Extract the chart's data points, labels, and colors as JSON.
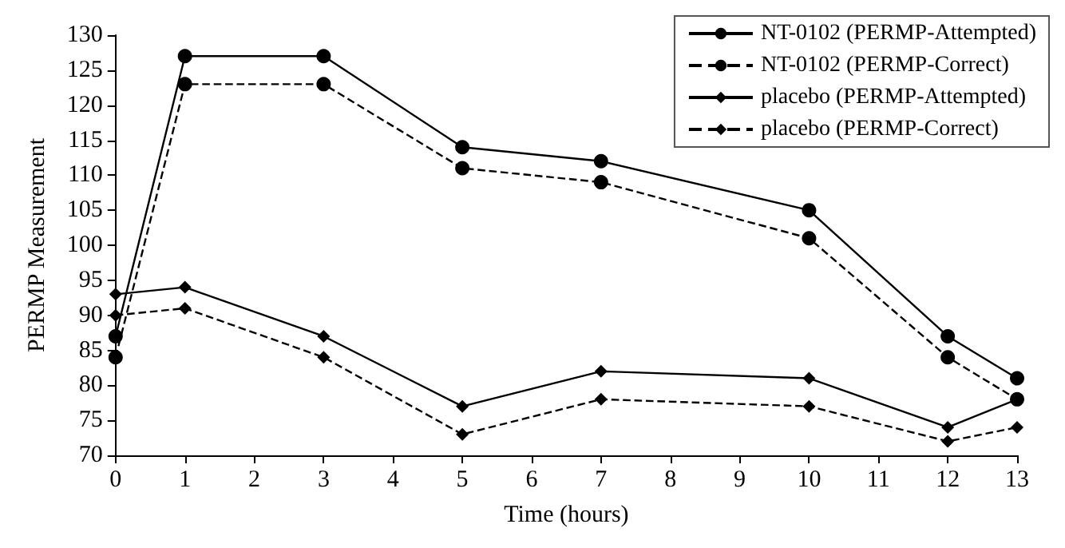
{
  "chart_data": {
    "type": "line",
    "xlabel": "Time (hours)",
    "ylabel": "PERMP Measurement",
    "x": [
      0,
      1,
      3,
      5,
      7,
      10,
      12,
      13
    ],
    "series": [
      {
        "name": "NT-0102 (PERMP-Attempted)",
        "color": "#000000",
        "marker": "circle",
        "line_style": "solid",
        "values": [
          87,
          127,
          127,
          114,
          112,
          105,
          87,
          81
        ]
      },
      {
        "name": "NT-0102 (PERMP-Correct)",
        "color": "#000000",
        "marker": "circle",
        "line_style": "dashed",
        "values": [
          84,
          123,
          123,
          111,
          109,
          101,
          84,
          78
        ]
      },
      {
        "name": "placebo (PERMP-Attempted)",
        "color": "#000000",
        "marker": "diamond",
        "line_style": "solid",
        "values": [
          93,
          94,
          87,
          77,
          82,
          81,
          74,
          78
        ]
      },
      {
        "name": "placebo (PERMP-Correct)",
        "color": "#000000",
        "marker": "diamond",
        "line_style": "dashed",
        "values": [
          90,
          91,
          84,
          73,
          78,
          77,
          72,
          74
        ]
      }
    ],
    "xlim": [
      0,
      13
    ],
    "xticks": [
      0,
      1,
      2,
      3,
      4,
      5,
      6,
      7,
      8,
      9,
      10,
      11,
      12,
      13
    ],
    "ylim": [
      70,
      130
    ],
    "yticks": [
      70,
      75,
      80,
      85,
      90,
      95,
      100,
      105,
      110,
      115,
      120,
      125,
      130
    ],
    "grid": false,
    "legend": "top right"
  }
}
